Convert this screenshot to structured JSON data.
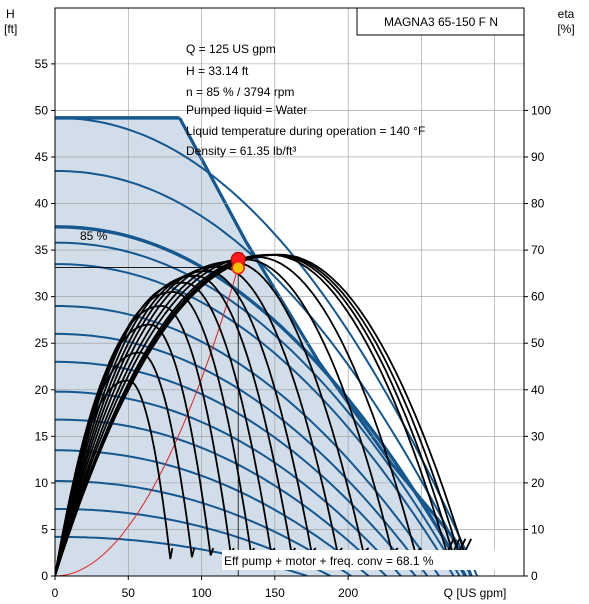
{
  "chart_data": {
    "type": "line",
    "title": "MAGNA3 65-150 F N",
    "xlabel": "Q [US gpm]",
    "ylabel_left": [
      "H",
      "[ft]"
    ],
    "ylabel_right": [
      "eta",
      "[%]"
    ],
    "xlim": [
      0,
      320
    ],
    "ylim_left": [
      0,
      61
    ],
    "ylim_right": [
      0,
      122
    ],
    "x_ticks": [
      0,
      50,
      100,
      150,
      200
    ],
    "y_ticks_left": [
      0,
      5,
      10,
      15,
      20,
      25,
      30,
      35,
      40,
      45,
      50,
      55
    ],
    "y_ticks_right": [
      0,
      10,
      20,
      30,
      40,
      50,
      60,
      70,
      80,
      90,
      100
    ],
    "grid": true,
    "info": [
      "Q = 125 US gpm",
      "H = 33.14 ft",
      "n = 85 % / 3794 rpm",
      "Pumped liquid = Water",
      "Liquid temperature during operation = 140 °F",
      "Density = 61.35 lb/ft³"
    ],
    "speed_label": "85 %",
    "efficiency_note": "Eff pump + motor + freq. conv = 68.1 %",
    "duty_point": {
      "q": 125,
      "h": 33.14
    },
    "envelope": {
      "max_head": 49.2,
      "flat_to_q": 85,
      "right_edge": [
        [
          85,
          49.2
        ],
        [
          130,
          36
        ],
        [
          180,
          23
        ],
        [
          230,
          12
        ],
        [
          275,
          3.5
        ],
        [
          284,
          0
        ]
      ]
    },
    "head_curves": [
      {
        "h0": 49.2,
        "q_max": 288
      },
      {
        "h0": 43.5,
        "q_max": 284
      },
      {
        "h0": 37.5,
        "q_max": 280,
        "label": "85 %"
      },
      {
        "h0": 35.8,
        "q_max": 276
      },
      {
        "h0": 33.5,
        "q_max": 272
      },
      {
        "h0": 29.0,
        "q_max": 262
      },
      {
        "h0": 26.0,
        "q_max": 254
      },
      {
        "h0": 23.0,
        "q_max": 246
      },
      {
        "h0": 19.8,
        "q_max": 236
      },
      {
        "h0": 16.8,
        "q_max": 226
      },
      {
        "h0": 13.5,
        "q_max": 214
      },
      {
        "h0": 10.2,
        "q_max": 202
      },
      {
        "h0": 7.2,
        "q_max": 188
      },
      {
        "h0": 4.2,
        "q_max": 172
      }
    ],
    "efficiency_curves": [
      {
        "q_end": 80,
        "peak_q": 50,
        "peak_eta": 42
      },
      {
        "q_end": 95,
        "peak_q": 58,
        "peak_eta": 48
      },
      {
        "q_end": 108,
        "peak_q": 65,
        "peak_eta": 54
      },
      {
        "q_end": 122,
        "peak_q": 73,
        "peak_eta": 58
      },
      {
        "q_end": 136,
        "peak_q": 81,
        "peak_eta": 61
      },
      {
        "q_end": 150,
        "peak_q": 88,
        "peak_eta": 63
      },
      {
        "q_end": 164,
        "peak_q": 96,
        "peak_eta": 64.5
      },
      {
        "q_end": 178,
        "peak_q": 104,
        "peak_eta": 65.5
      },
      {
        "q_end": 196,
        "peak_q": 112,
        "peak_eta": 66.5
      },
      {
        "q_end": 214,
        "peak_q": 121,
        "peak_eta": 67.5
      },
      {
        "q_end": 234,
        "peak_q": 130,
        "peak_eta": 68
      },
      {
        "q_end": 250,
        "peak_q": 138,
        "peak_eta": 68.5
      },
      {
        "q_end": 272,
        "peak_q": 147,
        "peak_eta": 69
      },
      {
        "q_end": 276,
        "peak_q": 150,
        "peak_eta": 69
      },
      {
        "q_end": 280,
        "peak_q": 152,
        "peak_eta": 69
      },
      {
        "q_end": 284,
        "peak_q": 154,
        "peak_eta": 69
      }
    ],
    "system_curve": {
      "k": 0.002121,
      "q_max": 128
    },
    "colors": {
      "head": "#15578f",
      "envelope_fill": "#d1dde9",
      "efficiency": "#000000",
      "system": "#e62020",
      "duty_marker": "#ff1a1a",
      "duty_marker_eff": "#f2c400",
      "grid": "#9a9a9a"
    }
  }
}
